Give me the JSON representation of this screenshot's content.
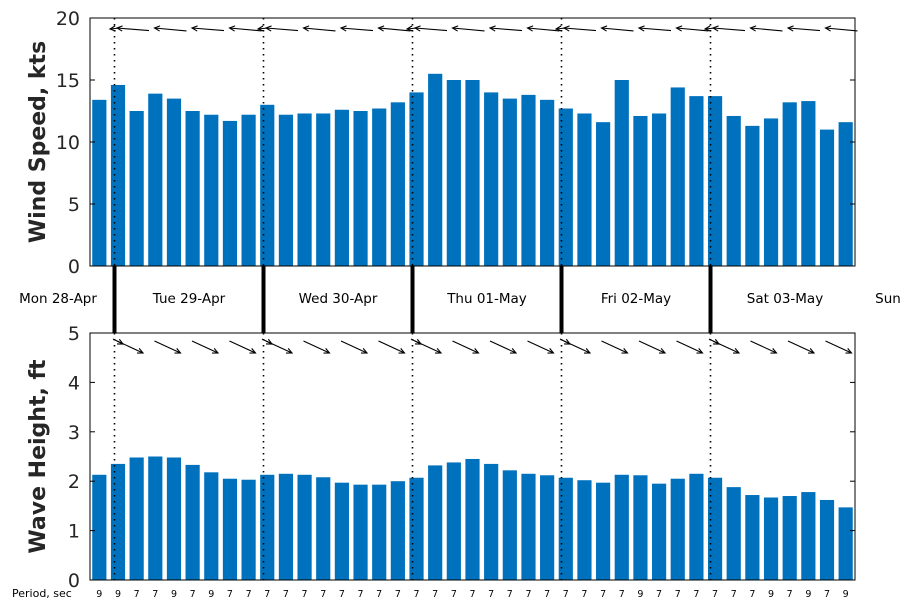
{
  "chart_data": [
    {
      "type": "bar",
      "ylabel": "Wind Speed, kts",
      "ylim": [
        0,
        20
      ],
      "yticks": [
        "0",
        "5",
        "10",
        "15",
        "20"
      ],
      "grid": false,
      "bar_color": "#0072BD",
      "values": [
        13.4,
        14.6,
        12.5,
        13.9,
        13.5,
        12.5,
        12.2,
        11.7,
        12.2,
        13.0,
        12.2,
        12.3,
        12.3,
        12.6,
        12.5,
        12.7,
        13.2,
        14.0,
        15.5,
        15.0,
        15.0,
        14.0,
        13.5,
        13.8,
        13.4,
        12.7,
        12.3,
        11.6,
        15.0,
        12.1,
        12.3,
        14.4,
        13.7,
        13.7,
        12.1,
        11.3,
        11.9,
        13.2,
        13.3,
        11.0,
        11.6
      ],
      "direction_arrows": "wind direction arrows along top of panel"
    },
    {
      "type": "bar",
      "ylabel": "Wave Height, ft",
      "ylim": [
        0,
        5
      ],
      "yticks": [
        "0",
        "1",
        "2",
        "3",
        "4",
        "5"
      ],
      "grid": false,
      "bar_color": "#0072BD",
      "values": [
        2.13,
        2.35,
        2.48,
        2.5,
        2.48,
        2.33,
        2.18,
        2.05,
        2.03,
        2.13,
        2.15,
        2.13,
        2.08,
        1.97,
        1.93,
        1.93,
        2.0,
        2.07,
        2.32,
        2.38,
        2.45,
        2.35,
        2.22,
        2.15,
        2.12,
        2.07,
        2.02,
        1.97,
        2.13,
        2.12,
        1.95,
        2.05,
        2.15,
        2.07,
        1.88,
        1.72,
        1.67,
        1.7,
        1.78,
        1.62,
        1.47
      ],
      "period_label": "Period, sec",
      "periods": [
        "9",
        "9",
        "7",
        "7",
        "9",
        "7",
        "9",
        "7",
        "7",
        "7",
        "7",
        "7",
        "7",
        "7",
        "7",
        "7",
        "7",
        "7",
        "7",
        "7",
        "7",
        "7",
        "7",
        "7",
        "7",
        "7",
        "7",
        "7",
        "7",
        "9",
        "7",
        "7",
        "7",
        "7",
        "7",
        "7",
        "9",
        "7",
        "9",
        "7",
        "9"
      ],
      "direction_arrows": "wave direction arrows along top of panel"
    }
  ],
  "days": [
    "Mon 28-Apr",
    "Tue 29-Apr",
    "Wed 30-Apr",
    "Thu 01-May",
    "Fri 02-May",
    "Sat 03-May",
    "Sun"
  ],
  "colors": {
    "bar": "#0072BD",
    "axis": "#000000",
    "text": "#262626"
  }
}
